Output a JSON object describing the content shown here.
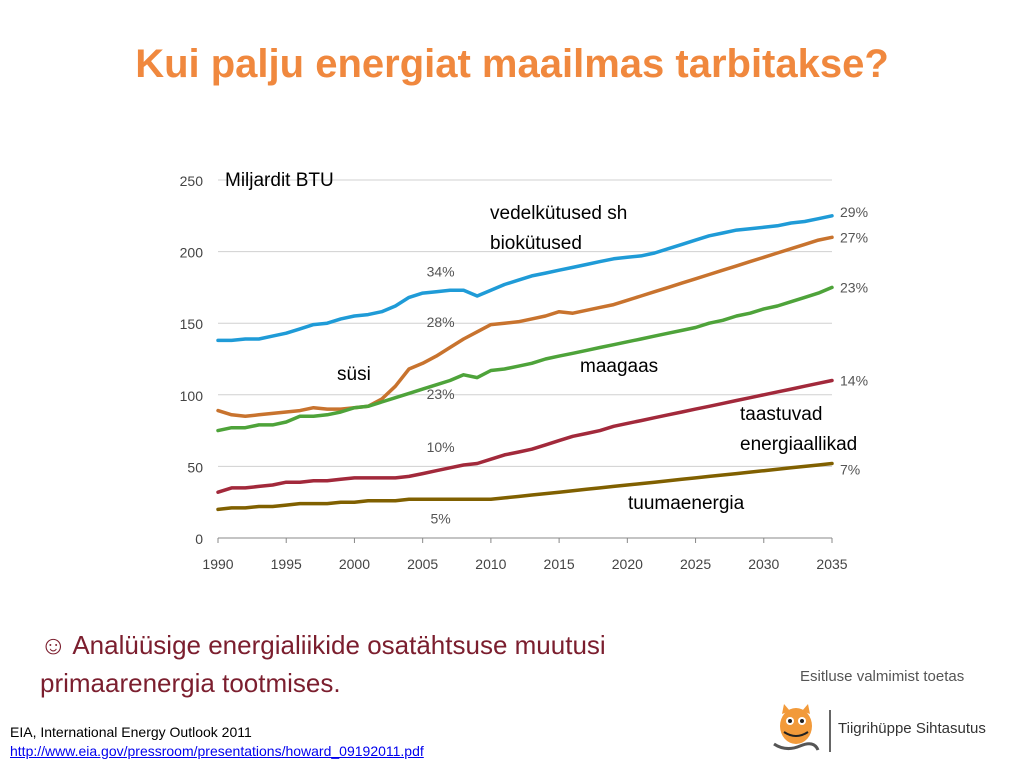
{
  "slide": {
    "title": "Kui palju energiat maailmas tarbitakse?",
    "title_color": "#f0883e",
    "bullet_symbol": "☺",
    "bullet_line1": "Analüüsige energialiikide osatähtsuse muutusi",
    "bullet_line2": "primaarenergia tootmises.",
    "source_line": "EIA, International Energy Outlook 2011",
    "source_link": "http://www.eia.gov/pressroom/presentations/howard_09192011.pdf",
    "sponsor_caption": "Esitluse valmimist toetas",
    "sponsor_name": "Tiigrihüppe Sihtasutus"
  },
  "chart_data": {
    "type": "line",
    "ylabel": "Miljardit BTU",
    "ylim": [
      0,
      250
    ],
    "xlim": [
      1990,
      2035
    ],
    "y_ticks": [
      "0",
      "50",
      "100",
      "150",
      "200",
      "250"
    ],
    "x_ticks": [
      "1990",
      "1995",
      "2000",
      "2005",
      "2010",
      "2015",
      "2020",
      "2025",
      "2030",
      "2035"
    ],
    "grid": true,
    "x": [
      1990,
      1991,
      1992,
      1993,
      1994,
      1995,
      1996,
      1997,
      1998,
      1999,
      2000,
      2001,
      2002,
      2003,
      2004,
      2005,
      2006,
      2007,
      2008,
      2009,
      2010,
      2011,
      2012,
      2013,
      2014,
      2015,
      2016,
      2017,
      2018,
      2019,
      2020,
      2021,
      2022,
      2023,
      2024,
      2025,
      2026,
      2027,
      2028,
      2029,
      2030,
      2031,
      2032,
      2033,
      2034,
      2035
    ],
    "series": [
      {
        "name": "vedelkütused sh biokütused",
        "color": "#1f9bd7",
        "values": [
          138,
          138,
          139,
          139,
          141,
          143,
          146,
          149,
          150,
          153,
          155,
          156,
          158,
          162,
          168,
          171,
          172,
          173,
          173,
          169,
          173,
          177,
          180,
          183,
          185,
          187,
          189,
          191,
          193,
          195,
          196,
          197,
          199,
          202,
          205,
          208,
          211,
          213,
          215,
          216,
          217,
          218,
          220,
          221,
          223,
          225
        ],
        "label_2008": "34%",
        "label_2035": "29%"
      },
      {
        "name": "süsi",
        "color": "#c8732e",
        "values": [
          89,
          86,
          85,
          86,
          87,
          88,
          89,
          91,
          90,
          90,
          91,
          92,
          97,
          106,
          118,
          122,
          127,
          133,
          139,
          144,
          149,
          150,
          151,
          153,
          155,
          158,
          157,
          159,
          161,
          163,
          166,
          169,
          172,
          175,
          178,
          181,
          184,
          187,
          190,
          193,
          196,
          199,
          202,
          205,
          208,
          210
        ],
        "label_2008": "28%",
        "label_2035": "27%"
      },
      {
        "name": "maagaas",
        "color": "#4ea33a",
        "values": [
          75,
          77,
          77,
          79,
          79,
          81,
          85,
          85,
          86,
          88,
          91,
          92,
          95,
          98,
          101,
          104,
          107,
          110,
          114,
          112,
          117,
          118,
          120,
          122,
          125,
          127,
          129,
          131,
          133,
          135,
          137,
          139,
          141,
          143,
          145,
          147,
          150,
          152,
          155,
          157,
          160,
          162,
          165,
          168,
          171,
          175
        ],
        "label_2008": "23%",
        "label_2035": "23%"
      },
      {
        "name": "taastuvad energiaallikad",
        "color": "#a2293b",
        "values": [
          32,
          35,
          35,
          36,
          37,
          39,
          39,
          40,
          40,
          41,
          42,
          42,
          42,
          42,
          43,
          45,
          47,
          49,
          51,
          52,
          55,
          58,
          60,
          62,
          65,
          68,
          71,
          73,
          75,
          78,
          80,
          82,
          84,
          86,
          88,
          90,
          92,
          94,
          96,
          98,
          100,
          102,
          104,
          106,
          108,
          110
        ],
        "label_2008": "10%",
        "label_2035": "14%"
      },
      {
        "name": "tuumaenergia",
        "color": "#806000",
        "values": [
          20,
          21,
          21,
          22,
          22,
          23,
          24,
          24,
          24,
          25,
          25,
          26,
          26,
          26,
          27,
          27,
          27,
          27,
          27,
          27,
          27,
          28,
          29,
          30,
          31,
          32,
          33,
          34,
          35,
          36,
          37,
          38,
          39,
          40,
          41,
          42,
          43,
          44,
          45,
          46,
          47,
          48,
          49,
          50,
          51,
          52
        ],
        "label_2008": "5%",
        "label_2035": "7%"
      }
    ]
  }
}
